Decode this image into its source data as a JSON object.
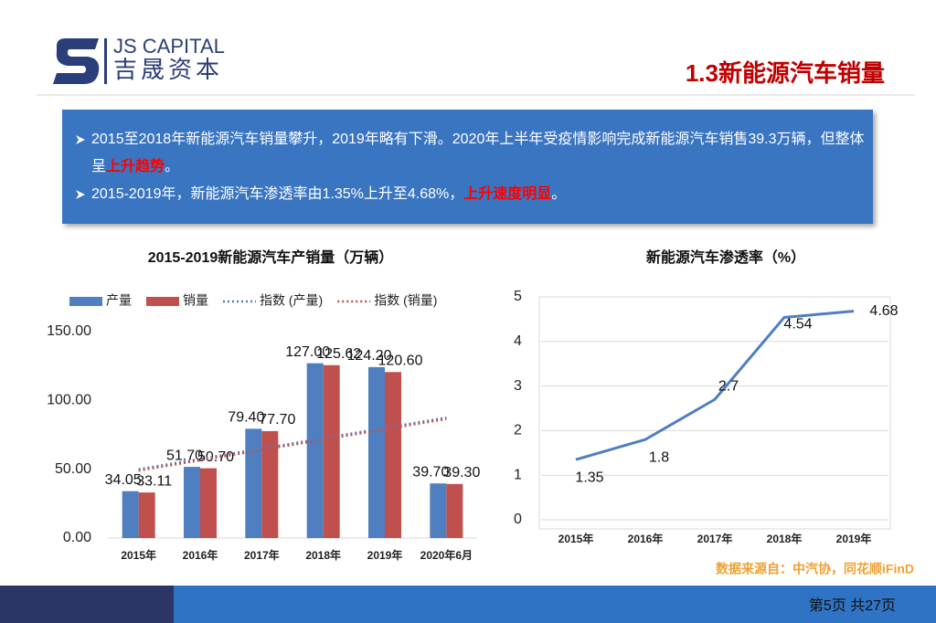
{
  "header": {
    "logo_en": "JS CAPITAL",
    "logo_cn": "吉晟资本",
    "title": "1.3新能源汽车销量"
  },
  "bullets": [
    [
      {
        "text": "2015至2018年新能源汽车销量攀升，2019年略有下滑。2020年上半年受疫情影响完成新能源汽车销售39.3万辆，但整体呈"
      },
      {
        "text": "上升趋势",
        "highlight": true
      },
      {
        "text": "。"
      }
    ],
    [
      {
        "text": "2015-2019年，新能源汽车渗透率由1.35%上升至4.68%，"
      },
      {
        "text": "上升速度明显",
        "highlight": true
      },
      {
        "text": "。"
      }
    ]
  ],
  "chart_data": [
    {
      "type": "bar",
      "title": "2015-2019新能源汽车产销量（万辆）",
      "categories": [
        "2015年",
        "2016年",
        "2017年",
        "2018年",
        "2019年",
        "2020年6月"
      ],
      "series": [
        {
          "name": "产量",
          "color": "#4f7fc1",
          "values": [
            34.05,
            51.7,
            79.4,
            127,
            124.2,
            39.7
          ],
          "value_labels": [
            "34.05",
            "51.70",
            "79.40",
            "127.00",
            "124.20",
            "39.70"
          ]
        },
        {
          "name": "销量",
          "color": "#c0504d",
          "values": [
            33.11,
            50.7,
            77.7,
            125.62,
            120.6,
            39.3
          ],
          "value_labels": [
            "33.11",
            "50.70",
            "77.70",
            "125.62",
            "120.60",
            "39.30"
          ]
        },
        {
          "name": "指数 (产量)",
          "type": "line",
          "dotted": true,
          "color": "#4f7fc1",
          "values": [
            50,
            57.5,
            65,
            72.5,
            80,
            87.5
          ]
        },
        {
          "name": "指数 (销量)",
          "type": "line",
          "dotted": true,
          "color": "#c0504d",
          "values": [
            49,
            56.5,
            64,
            71.5,
            79,
            86.5
          ]
        }
      ],
      "ylim": [
        0,
        150
      ],
      "yticks": [
        {
          "value": 0,
          "label": "0.00"
        },
        {
          "value": 50,
          "label": "50.00"
        },
        {
          "value": 100,
          "label": "100.00"
        },
        {
          "value": 150,
          "label": "150.00"
        }
      ],
      "grid": false
    },
    {
      "type": "line",
      "title": "新能源汽车渗透率（%）",
      "categories": [
        "2015年",
        "2016年",
        "2017年",
        "2018年",
        "2019年"
      ],
      "series": [
        {
          "name": "渗透率",
          "color": "#4f7fc1",
          "values": [
            1.35,
            1.8,
            2.7,
            4.54,
            4.68
          ]
        }
      ],
      "ylim": [
        0,
        5
      ],
      "yticks": [
        0,
        1,
        2,
        3,
        4,
        5
      ],
      "grid": true
    }
  ],
  "source": "数据来源自：中汽协，同花顺iFinD",
  "page": "第5页 共27页"
}
